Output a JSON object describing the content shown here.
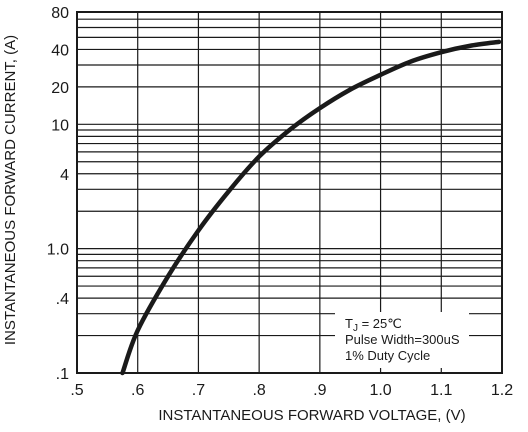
{
  "chart_data": {
    "type": "line",
    "title": "",
    "xlabel": "INSTANTANEOUS FORWARD VOLTAGE, (V)",
    "ylabel": "INSTANTANEOUS FORWARD CURRENT, (A)",
    "xlim": [
      0.5,
      1.2
    ],
    "ylim": [
      0.1,
      80
    ],
    "y_scale": "log",
    "grid": true,
    "x_ticks": [
      0.5,
      0.6,
      0.7,
      0.8,
      0.9,
      1.0,
      1.1,
      1.2
    ],
    "x_tick_labels": [
      ".5",
      ".6",
      ".7",
      ".8",
      ".9",
      "1.0",
      "1.1",
      "1.2"
    ],
    "y_ticks": [
      0.1,
      0.4,
      1.0,
      4,
      10,
      20,
      40,
      80
    ],
    "y_tick_labels": [
      ".1",
      ".4",
      "1.0",
      "4",
      "10",
      "20",
      "40",
      "80"
    ],
    "y_gridlines": [
      0.1,
      0.2,
      0.3,
      0.4,
      0.5,
      0.6,
      0.7,
      0.8,
      0.9,
      1,
      2,
      3,
      4,
      5,
      6,
      7,
      8,
      9,
      10,
      20,
      30,
      40,
      50,
      60,
      70,
      80
    ],
    "series": [
      {
        "name": "",
        "x": [
          0.575,
          0.6,
          0.65,
          0.7,
          0.75,
          0.8,
          0.85,
          0.9,
          0.95,
          1.0,
          1.05,
          1.1,
          1.15,
          1.195
        ],
        "y": [
          0.1,
          0.22,
          0.6,
          1.4,
          2.9,
          5.5,
          9.0,
          13.5,
          19.0,
          25.0,
          32.0,
          38.0,
          43.0,
          46.0
        ]
      }
    ],
    "annotation": {
      "tj_prefix": "T",
      "tj_subscript": "J",
      "tj_suffix": " = 25℃",
      "line2": "Pulse Width=300uS",
      "line3": "1% Duty Cycle"
    }
  }
}
